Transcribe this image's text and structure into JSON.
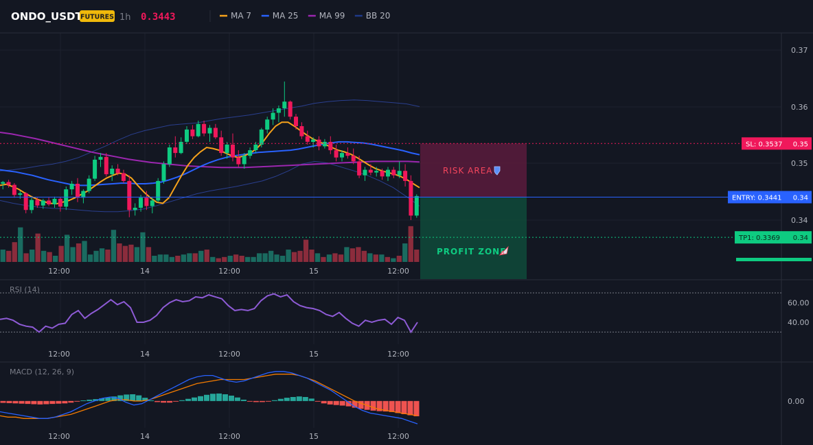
{
  "header": {
    "symbol": "ONDO_USDT",
    "market_badge": "FUTURES",
    "timeframe": "1h",
    "last_price": "0.3443",
    "indicators": [
      {
        "label": "MA 7",
        "color": "#f7a21b"
      },
      {
        "label": "MA 25",
        "color": "#2962ff"
      },
      {
        "label": "MA 99",
        "color": "#9c27b0"
      },
      {
        "label": "BB 20",
        "color": "#1e3a8a"
      }
    ]
  },
  "colors": {
    "up": "#26a69a",
    "up_candle": "#0ecb81",
    "down": "#f6465d",
    "down_volume": "#8b2c3c",
    "up_volume": "#1a6b60",
    "risk_zone": "#5a1b3c",
    "profit_zone": "#0f4a3a",
    "sl": "#f0185b",
    "entry": "#2962ff",
    "tp": "#0ecb81",
    "rsi_line": "#8e5bd6",
    "macd_line": "#2962ff",
    "signal_line": "#f57c00"
  },
  "chart_data": [
    {
      "type": "candlestick",
      "title": "ONDO_USDT 1h",
      "x_ticks": [
        "12:00",
        "14",
        "12:00",
        "15",
        "12:00"
      ],
      "y_ticks": [
        "0.37",
        "0.36",
        "0.35",
        "0.34"
      ],
      "ylim": [
        0.3325,
        0.3735
      ],
      "candles": [
        [
          0.3465,
          0.347,
          0.3455,
          0.3468
        ],
        [
          0.3468,
          0.3472,
          0.3458,
          0.3463
        ],
        [
          0.3463,
          0.3466,
          0.344,
          0.3445
        ],
        [
          0.3445,
          0.3452,
          0.3438,
          0.3448
        ],
        [
          0.3448,
          0.345,
          0.3412,
          0.3418
        ],
        [
          0.3418,
          0.344,
          0.3412,
          0.3436
        ],
        [
          0.3436,
          0.344,
          0.3422,
          0.3426
        ],
        [
          0.3426,
          0.3438,
          0.342,
          0.3435
        ],
        [
          0.3435,
          0.344,
          0.3425,
          0.3428
        ],
        [
          0.3428,
          0.3442,
          0.3422,
          0.3438
        ],
        [
          0.3438,
          0.3441,
          0.3415,
          0.3424
        ],
        [
          0.3424,
          0.346,
          0.3418,
          0.3455
        ],
        [
          0.3455,
          0.347,
          0.3445,
          0.3465
        ],
        [
          0.3465,
          0.3475,
          0.3432,
          0.344
        ],
        [
          0.344,
          0.3455,
          0.343,
          0.3452
        ],
        [
          0.3452,
          0.348,
          0.3448,
          0.3474
        ],
        [
          0.3474,
          0.3515,
          0.347,
          0.3508
        ],
        [
          0.3508,
          0.352,
          0.3495,
          0.3513
        ],
        [
          0.3513,
          0.352,
          0.3478,
          0.3482
        ],
        [
          0.3482,
          0.3498,
          0.347,
          0.3492
        ],
        [
          0.3492,
          0.35,
          0.348,
          0.3484
        ],
        [
          0.3484,
          0.349,
          0.3466,
          0.347
        ],
        [
          0.347,
          0.348,
          0.3405,
          0.3418
        ],
        [
          0.3418,
          0.343,
          0.3408,
          0.3422
        ],
        [
          0.3422,
          0.3445,
          0.3415,
          0.344
        ],
        [
          0.344,
          0.3452,
          0.3418,
          0.3425
        ],
        [
          0.3425,
          0.344,
          0.3412,
          0.3435
        ],
        [
          0.3435,
          0.3475,
          0.3432,
          0.347
        ],
        [
          0.347,
          0.3505,
          0.3465,
          0.35
        ],
        [
          0.35,
          0.3535,
          0.3495,
          0.353
        ],
        [
          0.353,
          0.355,
          0.3512,
          0.352
        ],
        [
          0.352,
          0.3548,
          0.3518,
          0.354
        ],
        [
          0.354,
          0.3568,
          0.3536,
          0.3562
        ],
        [
          0.3562,
          0.357,
          0.3545,
          0.355
        ],
        [
          0.355,
          0.3578,
          0.3548,
          0.3572
        ],
        [
          0.3572,
          0.3578,
          0.355,
          0.3555
        ],
        [
          0.3555,
          0.357,
          0.354,
          0.3565
        ],
        [
          0.3565,
          0.3572,
          0.3545,
          0.3548
        ],
        [
          0.3548,
          0.356,
          0.3515,
          0.352
        ],
        [
          0.352,
          0.354,
          0.351,
          0.3535
        ],
        [
          0.3535,
          0.3555,
          0.3505,
          0.3512
        ],
        [
          0.3512,
          0.3525,
          0.3495,
          0.35
        ],
        [
          0.35,
          0.352,
          0.3492,
          0.3515
        ],
        [
          0.3515,
          0.353,
          0.351,
          0.3525
        ],
        [
          0.3525,
          0.354,
          0.352,
          0.3535
        ],
        [
          0.3535,
          0.3565,
          0.353,
          0.3562
        ],
        [
          0.3562,
          0.3585,
          0.3555,
          0.358
        ],
        [
          0.358,
          0.36,
          0.357,
          0.3592
        ],
        [
          0.3592,
          0.3605,
          0.3575,
          0.36
        ],
        [
          0.36,
          0.3648,
          0.3585,
          0.3612
        ],
        [
          0.3612,
          0.3614,
          0.358,
          0.3585
        ],
        [
          0.3585,
          0.359,
          0.3562,
          0.3568
        ],
        [
          0.3568,
          0.3575,
          0.3545,
          0.355
        ],
        [
          0.355,
          0.356,
          0.3535,
          0.354
        ],
        [
          0.354,
          0.3548,
          0.353,
          0.3544
        ],
        [
          0.3544,
          0.355,
          0.3525,
          0.3532
        ],
        [
          0.3532,
          0.3545,
          0.3528,
          0.354
        ],
        [
          0.354,
          0.355,
          0.3518,
          0.3525
        ],
        [
          0.3525,
          0.3535,
          0.3505,
          0.3512
        ],
        [
          0.3512,
          0.3525,
          0.3505,
          0.352
        ],
        [
          0.352,
          0.353,
          0.351,
          0.3515
        ],
        [
          0.3515,
          0.3528,
          0.35,
          0.3505
        ],
        [
          0.3505,
          0.3515,
          0.3475,
          0.348
        ],
        [
          0.348,
          0.3495,
          0.347,
          0.349
        ],
        [
          0.349,
          0.35,
          0.348,
          0.3485
        ],
        [
          0.3485,
          0.3495,
          0.3478,
          0.3488
        ],
        [
          0.3488,
          0.3492,
          0.3472,
          0.3478
        ],
        [
          0.3478,
          0.3495,
          0.347,
          0.349
        ],
        [
          0.349,
          0.3495,
          0.3475,
          0.348
        ],
        [
          0.348,
          0.3505,
          0.3475,
          0.3488
        ],
        [
          0.3488,
          0.35,
          0.346,
          0.347
        ],
        [
          0.347,
          0.348,
          0.34,
          0.3408
        ],
        [
          0.3408,
          0.3446,
          0.3404,
          0.3443
        ]
      ],
      "ma7": [
        0.3462,
        0.3464,
        0.346,
        0.3455,
        0.3448,
        0.3442,
        0.3437,
        0.3433,
        0.343,
        0.3429,
        0.3432,
        0.3435,
        0.344,
        0.3446,
        0.3452,
        0.346,
        0.3468,
        0.3475,
        0.348,
        0.3484,
        0.3482,
        0.3475,
        0.3462,
        0.345,
        0.344,
        0.3432,
        0.343,
        0.344,
        0.346,
        0.348,
        0.3498,
        0.3512,
        0.3522,
        0.353,
        0.3528,
        0.3525,
        0.352,
        0.3515,
        0.3512,
        0.3515,
        0.352,
        0.3528,
        0.354,
        0.3555,
        0.3568,
        0.3575,
        0.3575,
        0.3568,
        0.356,
        0.3552,
        0.3545,
        0.354,
        0.3535,
        0.353,
        0.3525,
        0.3522,
        0.3518,
        0.3512,
        0.3505,
        0.3498,
        0.3492,
        0.3488,
        0.3485,
        0.3482,
        0.3478,
        0.3472,
        0.3465,
        0.3458
      ],
      "ma25": [
        0.349,
        0.3488,
        0.3486,
        0.3483,
        0.348,
        0.3476,
        0.3472,
        0.3469,
        0.3466,
        0.3463,
        0.3462,
        0.3462,
        0.3463,
        0.3464,
        0.3465,
        0.3466,
        0.3466,
        0.3465,
        0.3465,
        0.3466,
        0.3468,
        0.3472,
        0.3477,
        0.3483,
        0.349,
        0.3497,
        0.3503,
        0.3508,
        0.3512,
        0.3515,
        0.3517,
        0.3519,
        0.3521,
        0.3522,
        0.3523,
        0.3524,
        0.3525,
        0.3527,
        0.353,
        0.3533,
        0.3536,
        0.3538,
        0.354,
        0.354,
        0.3539,
        0.3538,
        0.3536,
        0.3533,
        0.353,
        0.3527,
        0.3524,
        0.352,
        0.3517
      ],
      "ma99": [
        0.3557,
        0.3554,
        0.355,
        0.3546,
        0.3541,
        0.3536,
        0.3531,
        0.3526,
        0.3521,
        0.3517,
        0.3513,
        0.3509,
        0.3506,
        0.3503,
        0.3501,
        0.3499,
        0.3497,
        0.3496,
        0.3495,
        0.3494,
        0.3494,
        0.3494,
        0.3495,
        0.3496,
        0.3497,
        0.3498,
        0.3499,
        0.35,
        0.3501,
        0.3502,
        0.3503,
        0.3504,
        0.3505,
        0.3505,
        0.3505,
        0.3505,
        0.3504
      ],
      "bb_upper": [
        0.3488,
        0.349,
        0.3493,
        0.3497,
        0.35,
        0.3505,
        0.3512,
        0.3522,
        0.3532,
        0.3543,
        0.3553,
        0.356,
        0.3565,
        0.357,
        0.3572,
        0.3574,
        0.3578,
        0.3582,
        0.3585,
        0.3588,
        0.3592,
        0.3596,
        0.36,
        0.3604,
        0.3609,
        0.3612,
        0.3614,
        0.3615,
        0.3614,
        0.3612,
        0.361,
        0.3608,
        0.3603
      ],
      "bb_lower": [
        0.3435,
        0.343,
        0.3426,
        0.3423,
        0.3421,
        0.342,
        0.3418,
        0.3416,
        0.3415,
        0.3415,
        0.3417,
        0.342,
        0.3426,
        0.3433,
        0.344,
        0.3447,
        0.3452,
        0.3456,
        0.346,
        0.3465,
        0.347,
        0.3478,
        0.3488,
        0.35,
        0.3505,
        0.3502,
        0.3495,
        0.3488,
        0.348,
        0.347,
        0.3458,
        0.3442,
        0.3425
      ],
      "volumes": [
        1.0,
        0.9,
        1.6,
        2.8,
        0.7,
        1.0,
        2.3,
        0.9,
        0.8,
        0.5,
        1.3,
        2.2,
        1.2,
        1.5,
        1.7,
        0.6,
        0.9,
        1.1,
        1.0,
        2.6,
        1.5,
        1.3,
        1.4,
        1.2,
        2.4,
        1.2,
        0.5,
        0.6,
        0.6,
        0.4,
        0.5,
        0.6,
        0.7,
        0.7,
        0.9,
        1.0,
        0.4,
        0.3,
        0.4,
        0.5,
        0.6,
        0.5,
        0.4,
        0.4,
        0.7,
        0.7,
        0.9,
        0.6,
        0.5,
        1.0,
        0.8,
        0.9,
        1.8,
        1.0,
        0.7,
        0.4,
        0.6,
        0.7,
        0.6,
        1.2,
        1.1,
        1.2,
        0.9,
        0.7,
        0.6,
        0.6,
        0.4,
        0.3,
        0.5,
        1.5,
        2.9,
        1.0
      ],
      "levels": {
        "sl": {
          "label": "SL: 0.3537",
          "axis": "0.35",
          "price": 0.3537
        },
        "entry": {
          "label": "ENTRY: 0.3441",
          "axis": "0.34",
          "price": 0.3441
        },
        "tp1": {
          "label": "TP1: 0.3369",
          "axis": "0.34",
          "price": 0.3369
        }
      },
      "zones": {
        "risk_label": "RISK AREA",
        "profit_label": "PROFIT ZONE",
        "risk_icon": "shield-icon",
        "profit_icon": "rocket-icon"
      }
    },
    {
      "type": "line",
      "title": "RSI (14)",
      "y_ticks": [
        "60.00",
        "40.00"
      ],
      "ylim": [
        19,
        82
      ],
      "bands": [
        70,
        30
      ],
      "values": [
        43,
        44,
        42,
        38,
        36,
        35,
        30,
        36,
        34,
        38,
        39,
        48,
        52,
        44,
        49,
        53,
        58,
        63,
        58,
        61,
        55,
        40,
        40,
        42,
        47,
        55,
        60,
        63,
        61,
        62,
        66,
        65,
        68,
        66,
        64,
        57,
        52,
        53,
        52,
        54,
        62,
        67,
        69,
        66,
        68,
        61,
        57,
        55,
        54,
        52,
        48,
        46,
        50,
        44,
        39,
        36,
        42,
        40,
        42,
        43,
        38,
        45,
        42,
        30,
        40
      ]
    },
    {
      "type": "bar",
      "title": "MACD (12, 26, 9)",
      "y_ticks": [
        "0.00"
      ],
      "ylim": [
        -0.002,
        0.0028
      ],
      "histogram": [
        -0.00014,
        -0.00016,
        -0.00018,
        -0.0002,
        -0.00022,
        -0.00024,
        -0.00026,
        -0.00024,
        -0.00022,
        -0.0002,
        -0.00018,
        -0.00012,
        -4e-05,
        4e-05,
        0.0001,
        0.00014,
        0.0002,
        0.00026,
        0.00034,
        0.00042,
        0.00048,
        0.0005,
        0.00042,
        0.00024,
        4e-05,
        -8e-05,
        -0.00012,
        -0.00012,
        -4e-05,
        6e-05,
        0.00016,
        0.00026,
        0.00036,
        0.00046,
        0.00054,
        0.00056,
        0.0005,
        0.0004,
        0.00026,
        0.0001,
        -2e-05,
        -8e-05,
        -8e-05,
        -4e-05,
        6e-05,
        0.00016,
        0.00024,
        0.0003,
        0.00034,
        0.0003,
        0.00018,
        -4e-05,
        -0.00018,
        -0.00026,
        -0.0003,
        -0.00034,
        -0.0004,
        -0.0005,
        -0.00058,
        -0.00066,
        -0.00072,
        -0.00076,
        -0.00078,
        -0.00082,
        -0.0009,
        -0.00098,
        -0.00106,
        -0.00114
      ],
      "macd": [
        -0.0008,
        -0.0009,
        -0.001,
        -0.0011,
        -0.0012,
        -0.0013,
        -0.0013,
        -0.0012,
        -0.001,
        -0.0008,
        -0.0005,
        -0.0002,
        0.0,
        0.0002,
        0.0003,
        0.0002,
        -0.0001,
        -0.0003,
        -0.0002,
        0.0001,
        0.0004,
        0.0007,
        0.001,
        0.0013,
        0.0016,
        0.0018,
        0.0019,
        0.0019,
        0.0017,
        0.0015,
        0.0014,
        0.0015,
        0.0017,
        0.0019,
        0.0021,
        0.0022,
        0.0022,
        0.0021,
        0.0019,
        0.0017,
        0.0014,
        0.0011,
        0.0008,
        0.0004,
        0.0,
        -0.0004,
        -0.0007,
        -0.0009,
        -0.001,
        -0.0011,
        -0.0012,
        -0.0013,
        -0.0015,
        -0.0017
      ],
      "signal": [
        -0.0011,
        -0.0012,
        -0.0012,
        -0.0013,
        -0.0013,
        -0.0013,
        -0.0013,
        -0.0012,
        -0.0011,
        -0.001,
        -0.0008,
        -0.0006,
        -0.0004,
        -0.0002,
        0.0,
        0.0001,
        0.0001,
        0.0,
        0.0,
        0.0001,
        0.0003,
        0.0005,
        0.0007,
        0.0009,
        0.0011,
        0.0013,
        0.0014,
        0.0015,
        0.0016,
        0.0016,
        0.0016,
        0.0016,
        0.0017,
        0.0018,
        0.0019,
        0.002,
        0.002,
        0.002,
        0.0019,
        0.0017,
        0.0015,
        0.0012,
        0.0009,
        0.0006,
        0.0003,
        0.0,
        -0.0002,
        -0.0004,
        -0.0006,
        -0.0007,
        -0.0008,
        -0.0009,
        -0.001,
        -0.0011
      ]
    }
  ]
}
